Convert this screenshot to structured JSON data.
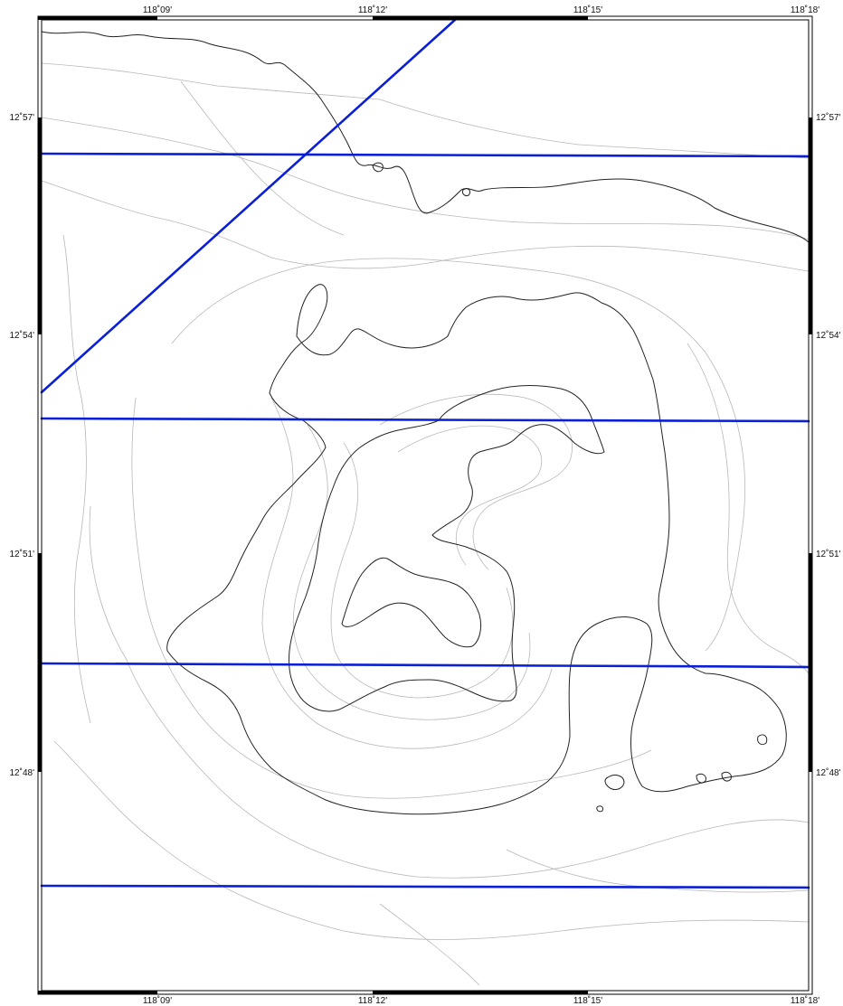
{
  "map": {
    "lon_labels": [
      "118˚09'",
      "118˚12'",
      "118˚15'",
      "118˚18'"
    ],
    "lat_labels": [
      "12˚57'",
      "12˚54'",
      "12˚51'",
      "12˚48'"
    ],
    "track_color": "#0a1fd6",
    "major_contour_color": "#222222",
    "minor_contour_color": "#b8b8b8",
    "tracks": [
      {
        "type": "diagonal-line"
      },
      {
        "type": "horizontal-line"
      },
      {
        "type": "horizontal-line"
      },
      {
        "type": "horizontal-line"
      },
      {
        "type": "horizontal-line"
      }
    ]
  }
}
